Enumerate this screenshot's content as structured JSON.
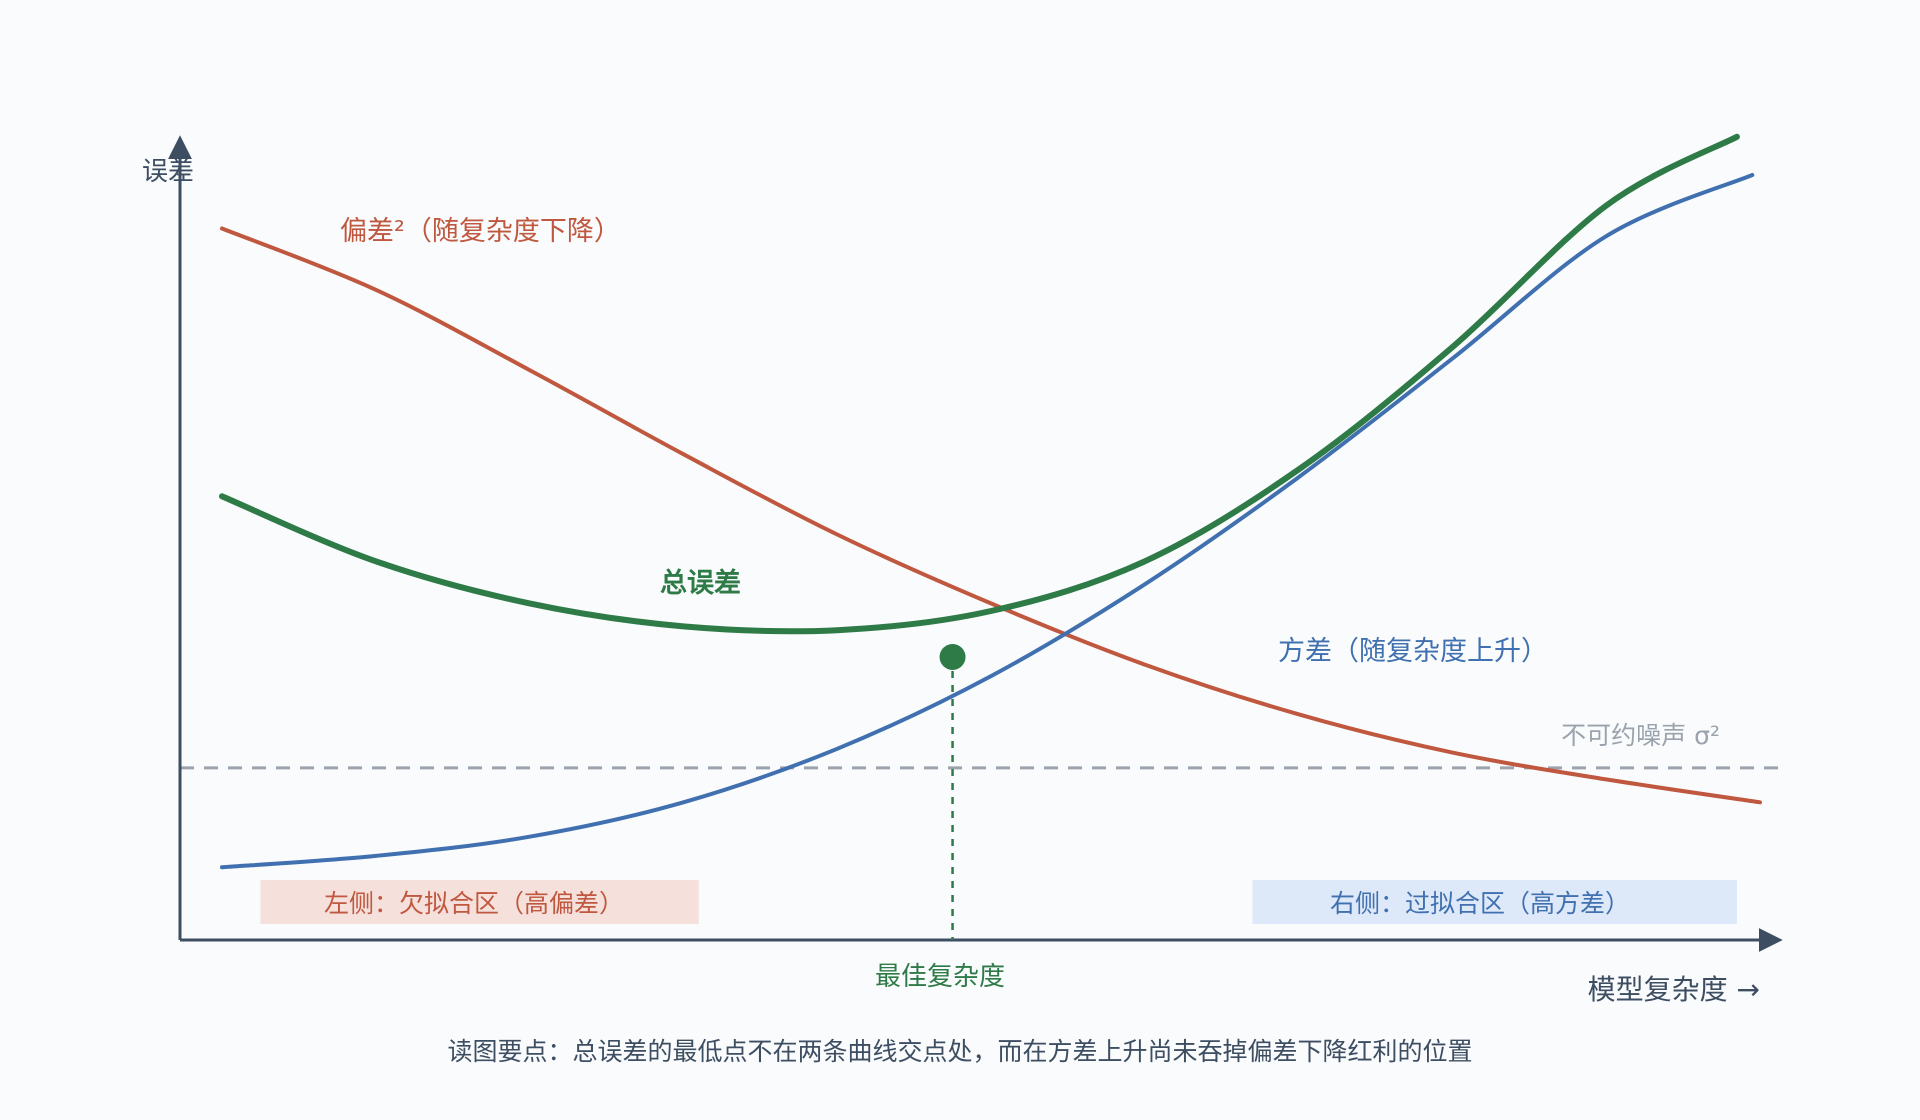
{
  "chart_data": {
    "type": "line",
    "title": "",
    "ylabel": "误差",
    "xlabel": "模型复杂度 →",
    "caption": "读图要点：总误差的最低点不在两条曲线交点处，而在方差上升尚未吞掉偏差下降红利的位置",
    "xlim": [
      0,
      10
    ],
    "ylim": [
      0,
      10
    ],
    "grid": false,
    "x_ticks_shown": false,
    "y_ticks_shown": false,
    "series": [
      {
        "name": "偏差²（随复杂度下降）",
        "color": "#c0583f",
        "points": [
          [
            0.0,
            9.3
          ],
          [
            1.0,
            8.5
          ],
          [
            2.0,
            7.45
          ],
          [
            3.0,
            6.35
          ],
          [
            4.0,
            5.3
          ],
          [
            5.0,
            4.4
          ],
          [
            6.0,
            3.6
          ],
          [
            7.0,
            2.95
          ],
          [
            8.0,
            2.45
          ],
          [
            9.0,
            2.1
          ],
          [
            10.0,
            1.8
          ]
        ]
      },
      {
        "name": "方差（随复杂度上升）",
        "color": "#4070b0",
        "points": [
          [
            0.0,
            0.95
          ],
          [
            1.0,
            1.1
          ],
          [
            2.0,
            1.35
          ],
          [
            3.0,
            1.8
          ],
          [
            4.0,
            2.5
          ],
          [
            5.0,
            3.45
          ],
          [
            6.0,
            4.65
          ],
          [
            7.0,
            6.05
          ],
          [
            8.0,
            7.6
          ],
          [
            9.0,
            9.2
          ],
          [
            9.95,
            10.0
          ]
        ]
      },
      {
        "name": "总误差",
        "color": "#2e7b47",
        "points": [
          [
            0.0,
            5.8
          ],
          [
            1.0,
            4.95
          ],
          [
            2.0,
            4.4
          ],
          [
            3.0,
            4.1
          ],
          [
            4.0,
            4.05
          ],
          [
            5.0,
            4.3
          ],
          [
            6.0,
            4.95
          ],
          [
            7.0,
            6.15
          ],
          [
            8.0,
            7.75
          ],
          [
            9.0,
            9.6
          ],
          [
            9.85,
            10.5
          ]
        ]
      }
    ],
    "noise_level": 2.25,
    "noise_label": "不可约噪声 σ²",
    "optimal": {
      "x": 4.75,
      "y": 3.7,
      "label": "最佳复杂度"
    },
    "regions": [
      {
        "label": "左侧：欠拟合区（高偏差）",
        "x_range": [
          0.25,
          3.1
        ],
        "fill": "#f5e0dc",
        "text_color": "#c0583f"
      },
      {
        "label": "右侧：过拟合区（高方差）",
        "x_range": [
          6.7,
          9.85
        ],
        "fill": "#dde8f8",
        "text_color": "#4070b0"
      }
    ],
    "series_labels": {
      "bias": "偏差²（随复杂度下降）",
      "variance": "方差（随复杂度上升）",
      "total": "总误差"
    },
    "colors": {
      "axis": "#3e4e62",
      "noise": "#9aa3ad",
      "caption": "#3e4e62",
      "background": "#f9fbfc"
    }
  }
}
